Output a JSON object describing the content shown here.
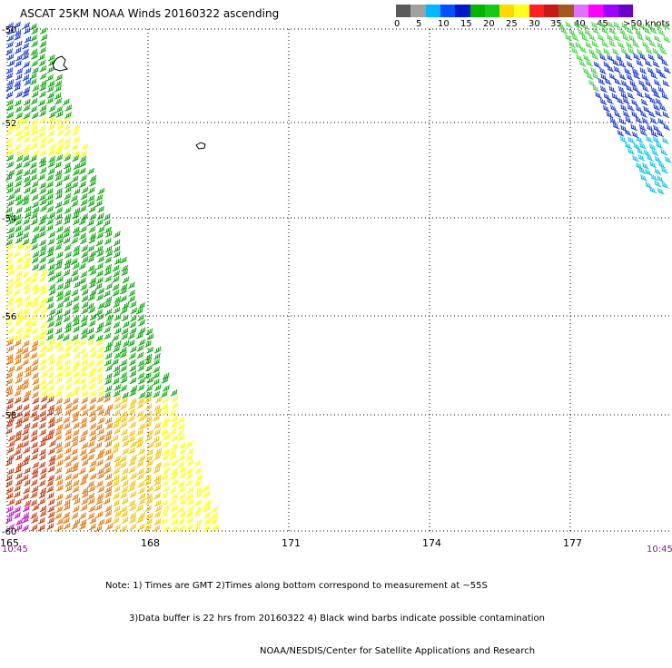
{
  "title": "ASCAT 25KM NOAA Winds 20160322 ascending",
  "scale": {
    "colors": [
      "#5a5a5a",
      "#a0a0a0",
      "#00b8ff",
      "#0050ff",
      "#0018c8",
      "#00b400",
      "#18c818",
      "#ffd800",
      "#ffff20",
      "#ff2020",
      "#c81818",
      "#a05a20",
      "#e070ff",
      "#ff00ff",
      "#a000ff",
      "#6a00c8"
    ],
    "labels": [
      "0",
      "5",
      "10",
      "15",
      "20",
      "25",
      "30",
      "35",
      "40",
      "45",
      ">50 knots"
    ]
  },
  "axes": {
    "x_ticks": [
      "165",
      "168",
      "171",
      "174",
      "177"
    ],
    "y_ticks": [
      "-50",
      "-52",
      "-54",
      "-56",
      "-58",
      "-60"
    ]
  },
  "times": {
    "left": "10:45",
    "right": "10:45"
  },
  "notes": [
    "Note: 1) Times are GMT 2)Times along bottom correspond to measurement at ~55S",
    "3)Data buffer is 22 hrs from 20160322 4) Black wind barbs indicate possible contamination",
    "NOAA/NESDIS/Center for Satellite Applications and Research"
  ],
  "wind_colors": {
    "green": "#00a000",
    "lightgreen": "#40d040",
    "yellow": "#ffff00",
    "gold": "#f0c000",
    "orange": "#e07000",
    "red": "#c03000",
    "brown": "#a04a20",
    "blue": "#1030d0",
    "cyan": "#00c0e0",
    "magenta": "#c000c0"
  }
}
